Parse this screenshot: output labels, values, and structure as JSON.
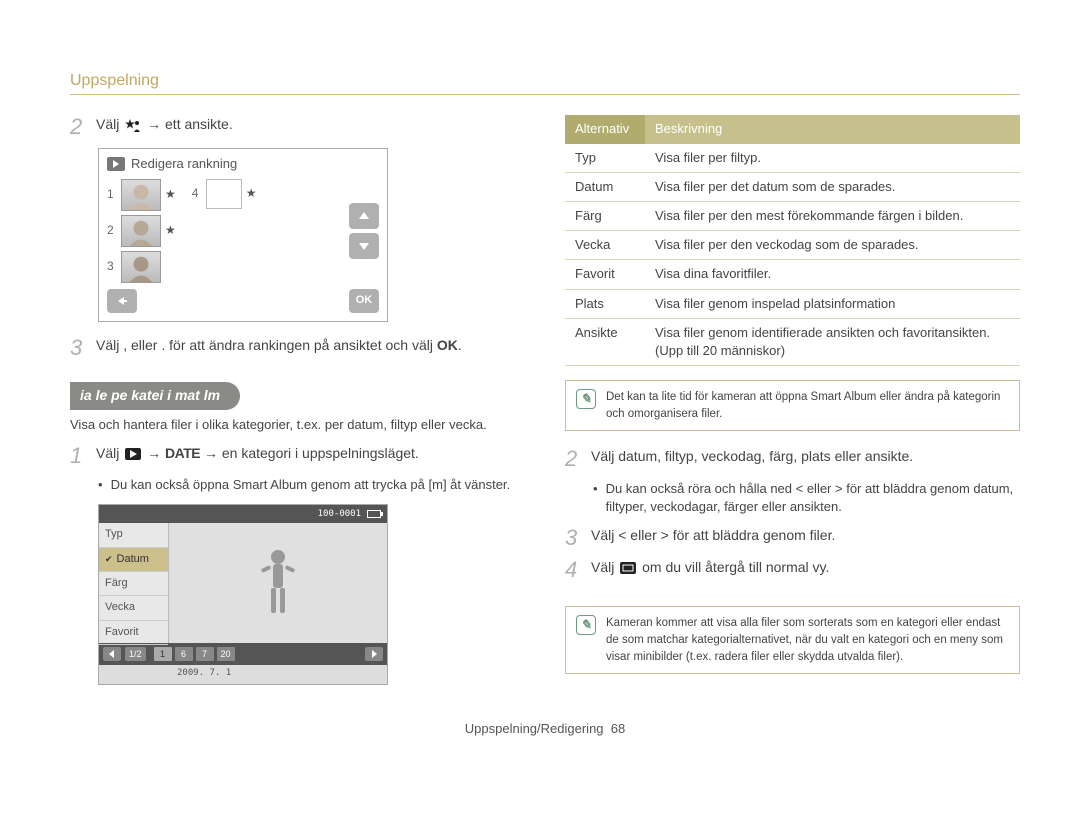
{
  "header": "Uppspelning",
  "left": {
    "step2": {
      "num": "2",
      "pre": "Välj ",
      "post": " → ett ansikte."
    },
    "rank_editor": {
      "title": "Redigera rankning",
      "left_rows": [
        {
          "n": "1",
          "stars": "★"
        },
        {
          "n": "2",
          "stars": "★"
        },
        {
          "n": "3",
          "stars": ""
        }
      ],
      "right_first": {
        "n": "4",
        "stars": "★"
      },
      "ok": "OK"
    },
    "step3": {
      "num": "3",
      "text_a": "Välj ,    eller .    för att ändra rankingen på ansiktet och välj ",
      "text_b": "."
    },
    "subheading": "ia  le pe  katei i  mat lm",
    "intro": "Visa och hantera ﬁler i olika kategorier, t.ex. per datum, ﬁltyp eller vecka.",
    "step1": {
      "num": "1",
      "pre": "Välj ",
      "mid": " → ",
      "date": "DATE",
      "post": " → en kategori i uppspelningsläget."
    },
    "bullet1": "Du kan också öppna Smart Album genom att trycka på [m] åt vänster.",
    "album": {
      "counter": "100-0001",
      "menu": [
        "Typ",
        "Datum",
        "Färg",
        "Vecka",
        "Favorit"
      ],
      "selected_index": 1,
      "page": "1/2",
      "days": [
        "1",
        "6",
        "7",
        "20"
      ],
      "date": "2009. 7. 1"
    }
  },
  "right": {
    "table": {
      "head_a": "Alternativ",
      "head_b": "Beskrivning",
      "rows": [
        {
          "a": "Typ",
          "b": "Visa ﬁler per ﬁltyp."
        },
        {
          "a": "Datum",
          "b": "Visa ﬁler per det datum som de sparades."
        },
        {
          "a": "Färg",
          "b": "Visa ﬁler per den mest förekommande färgen i bilden."
        },
        {
          "a": "Vecka",
          "b": "Visa ﬁler per den veckodag som de sparades."
        },
        {
          "a": "Favorit",
          "b": "Visa dina favoritﬁler."
        },
        {
          "a": "Plats",
          "b": "Visa ﬁler genom inspelad platsinformation"
        },
        {
          "a": "Ansikte",
          "b": "Visa ﬁler genom identiﬁerade ansikten och favoritansikten. (Upp till 20 människor)"
        }
      ]
    },
    "info1": "Det kan ta lite tid för kameran att öppna Smart Album eller ändra på kategorin och omorganisera ﬁler.",
    "step2": {
      "num": "2",
      "text": "Välj datum, filtyp, veckodag, färg, plats eller ansikte."
    },
    "bullet2": "Du kan också röra och hålla ned < eller > för att bläddra genom datum, ﬁltyper, veckodagar, färger eller ansikten.",
    "step3": {
      "num": "3",
      "text": "Välj < eller > för att bläddra genom filer."
    },
    "step4": {
      "num": "4",
      "pre": "Välj ",
      "post": " om du vill återgå till normal vy."
    },
    "info2": "Kameran kommer att visa alla ﬁler som sorterats som en kategori eller endast de som matchar kategorialternativet, när du valt en kategori och en meny som visar minibilder (t.ex. radera ﬁler eller skydda utvalda ﬁler)."
  },
  "footer": {
    "label": "Uppspelning/Redigering",
    "page": "68"
  },
  "colors": {
    "accent": "#afac6e"
  }
}
